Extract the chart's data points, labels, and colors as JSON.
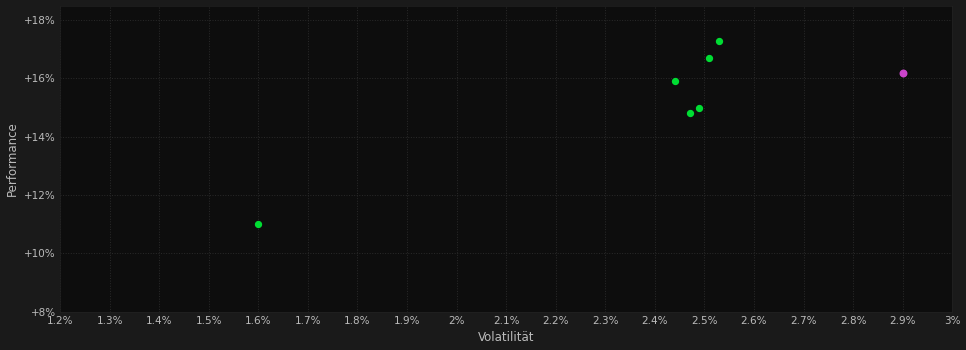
{
  "background_color": "#1a1a1a",
  "plot_bg_color": "#0d0d0d",
  "grid_color": "#2a2a2a",
  "text_color": "#bbbbbb",
  "xlabel": "Volatilität",
  "ylabel": "Performance",
  "xlim": [
    0.012,
    0.03
  ],
  "ylim": [
    0.08,
    0.185
  ],
  "green_points_pct": [
    [
      0.016,
      0.11
    ],
    [
      0.0244,
      0.159
    ],
    [
      0.0247,
      0.148
    ],
    [
      0.0249,
      0.15
    ],
    [
      0.0251,
      0.167
    ],
    [
      0.0253,
      0.173
    ]
  ],
  "magenta_points_pct": [
    [
      0.029,
      0.162
    ]
  ],
  "green_color": "#00dd33",
  "magenta_color": "#cc44cc",
  "point_size": 18,
  "point_size_magenta": 22
}
